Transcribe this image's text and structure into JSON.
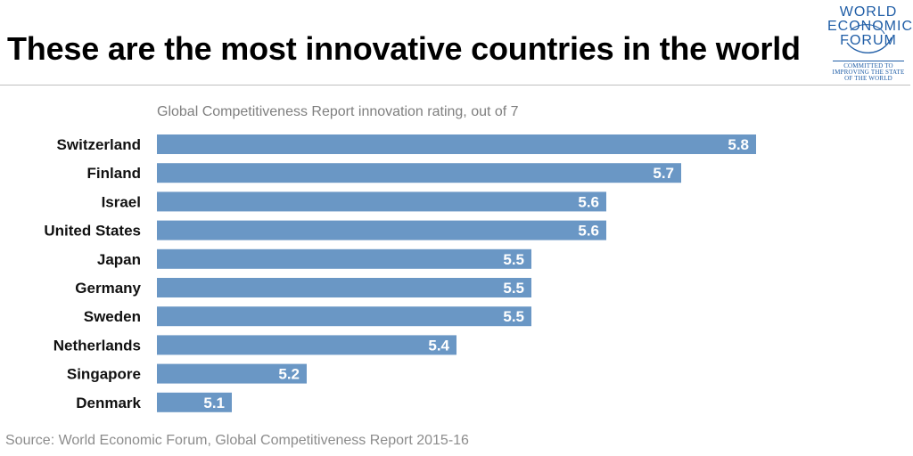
{
  "header": {
    "title": "These are the most innovative countries in the world"
  },
  "logo": {
    "name": "world-economic-forum-logo",
    "lines": [
      "WORLD",
      "ECONOMIC",
      "FORUM"
    ],
    "tagline": [
      "COMMITTED TO",
      "IMPROVING THE STATE",
      "OF THE WORLD"
    ],
    "color": "#1f5da6"
  },
  "chart_data": {
    "type": "bar",
    "orientation": "horizontal",
    "subtitle": "Global Competitiveness Report innovation rating, out of 7",
    "categories": [
      "Switzerland",
      "Finland",
      "Israel",
      "United States",
      "Japan",
      "Germany",
      "Sweden",
      "Netherlands",
      "Singapore",
      "Denmark"
    ],
    "values": [
      5.8,
      5.7,
      5.6,
      5.6,
      5.5,
      5.5,
      5.5,
      5.4,
      5.2,
      5.1
    ],
    "value_labels": [
      "5.8",
      "5.7",
      "5.6",
      "5.6",
      "5.5",
      "5.5",
      "5.5",
      "5.4",
      "5.2",
      "5.1"
    ],
    "xlim": [
      5.0,
      5.8
    ],
    "bar_color": "#6a97c5",
    "label_color": "#ffffff",
    "grid": false,
    "legend": "none"
  },
  "footer": {
    "source": "Source: World Economic Forum, Global Competitiveness Report 2015-16"
  }
}
